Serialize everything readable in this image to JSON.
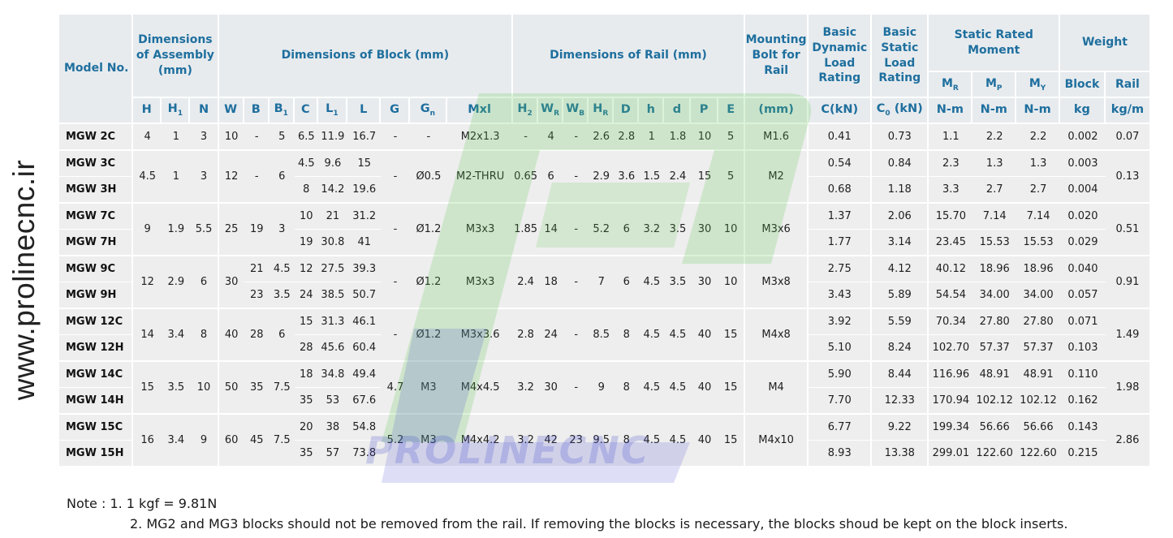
{
  "side_text": "www.prolinecnc.ir",
  "watermark_text": "PROLINECNC",
  "header": {
    "model": "Model No.",
    "assembly": "Dimensions of Assembly (mm)",
    "block": "Dimensions of Block (mm)",
    "rail": "Dimensions of Rail (mm)",
    "bolt": "Mounting Bolt for Rail",
    "dynamic": "Basic Dynamic Load Rating",
    "static": "Basic Static Load Rating",
    "moment": "Static Rated Moment",
    "weight": "Weight",
    "moment_cols": [
      {
        "base": "M",
        "sub": "R"
      },
      {
        "base": "M",
        "sub": "P"
      },
      {
        "base": "M",
        "sub": "Y"
      }
    ],
    "weight_cols": [
      "Block",
      "Rail"
    ],
    "sub_cols": [
      {
        "base": "H",
        "sub": ""
      },
      {
        "base": "H",
        "sub": "1"
      },
      {
        "base": "N",
        "sub": ""
      },
      {
        "base": "W",
        "sub": ""
      },
      {
        "base": "B",
        "sub": ""
      },
      {
        "base": "B",
        "sub": "1"
      },
      {
        "base": "C",
        "sub": ""
      },
      {
        "base": "L",
        "sub": "1"
      },
      {
        "base": "L",
        "sub": ""
      },
      {
        "base": "G",
        "sub": ""
      },
      {
        "base": "G",
        "sub": "n"
      },
      {
        "base": "Mxl",
        "sub": ""
      },
      {
        "base": "H",
        "sub": "2"
      },
      {
        "base": "W",
        "sub": "R"
      },
      {
        "base": "W",
        "sub": "B"
      },
      {
        "base": "H",
        "sub": "R"
      },
      {
        "base": "D",
        "sub": ""
      },
      {
        "base": "h",
        "sub": ""
      },
      {
        "base": "d",
        "sub": ""
      },
      {
        "base": "P",
        "sub": ""
      },
      {
        "base": "E",
        "sub": ""
      },
      {
        "base": "(mm)",
        "sub": ""
      },
      {
        "base": "C(kN)",
        "sub": ""
      },
      {
        "base": "C",
        "sub": "0",
        "tail": " (kN)"
      },
      {
        "base": "N-m",
        "sub": ""
      },
      {
        "base": "N-m",
        "sub": ""
      },
      {
        "base": "N-m",
        "sub": ""
      },
      {
        "base": "kg",
        "sub": ""
      },
      {
        "base": "kg/m",
        "sub": ""
      }
    ]
  },
  "groups": [
    {
      "rows": [
        {
          "model": "MGW 2C",
          "C": "6.5",
          "L1": "11.9",
          "L": "16.7",
          "dyn": "0.41",
          "stat": "0.73",
          "MR": "1.1",
          "MP": "2.2",
          "MY": "2.2",
          "block_kg": "0.002"
        }
      ],
      "H": "4",
      "H1": "1",
      "N": "3",
      "W": "10",
      "G": "-",
      "Gn": "-",
      "Mxl": "M2x1.3",
      "H2": "-",
      "WR": "4",
      "WB": "-",
      "HR": "2.6",
      "D": "2.8",
      "h": "1",
      "d": "1.8",
      "P": "10",
      "E": "5",
      "bolt": "M1.6",
      "rail_kg": "0.07",
      "B_merged": true,
      "B": "-",
      "B1": "5"
    },
    {
      "rows": [
        {
          "model": "MGW 3C",
          "C": "4.5",
          "L1": "9.6",
          "L": "15",
          "dyn": "0.54",
          "stat": "0.84",
          "MR": "2.3",
          "MP": "1.3",
          "MY": "1.3",
          "block_kg": "0.003"
        },
        {
          "model": "MGW 3H",
          "C": "8",
          "L1": "14.2",
          "L": "19.6",
          "dyn": "0.68",
          "stat": "1.18",
          "MR": "3.3",
          "MP": "2.7",
          "MY": "2.7",
          "block_kg": "0.004"
        }
      ],
      "H": "4.5",
      "H1": "1",
      "N": "3",
      "W": "12",
      "G": "-",
      "Gn": "Ø0.5",
      "Mxl": "M2-THRU",
      "H2": "0.65",
      "WR": "6",
      "WB": "-",
      "HR": "2.9",
      "D": "3.6",
      "h": "1.5",
      "d": "2.4",
      "P": "15",
      "E": "5",
      "bolt": "M2",
      "rail_kg": "0.13",
      "B_merged": true,
      "B": "-",
      "B1": "6"
    },
    {
      "rows": [
        {
          "model": "MGW 7C",
          "C": "10",
          "L1": "21",
          "L": "31.2",
          "dyn": "1.37",
          "stat": "2.06",
          "MR": "15.70",
          "MP": "7.14",
          "MY": "7.14",
          "block_kg": "0.020"
        },
        {
          "model": "MGW 7H",
          "C": "19",
          "L1": "30.8",
          "L": "41",
          "dyn": "1.77",
          "stat": "3.14",
          "MR": "23.45",
          "MP": "15.53",
          "MY": "15.53",
          "block_kg": "0.029"
        }
      ],
      "H": "9",
      "H1": "1.9",
      "N": "5.5",
      "W": "25",
      "G": "-",
      "Gn": "Ø1.2",
      "Mxl": "M3x3",
      "H2": "1.85",
      "WR": "14",
      "WB": "-",
      "HR": "5.2",
      "D": "6",
      "h": "3.2",
      "d": "3.5",
      "P": "30",
      "E": "10",
      "bolt": "M3x6",
      "rail_kg": "0.51",
      "B_merged": true,
      "B": "19",
      "B1": "3"
    },
    {
      "rows": [
        {
          "model": "MGW 9C",
          "B": "21",
          "B1": "4.5",
          "C": "12",
          "L1": "27.5",
          "L": "39.3",
          "dyn": "2.75",
          "stat": "4.12",
          "MR": "40.12",
          "MP": "18.96",
          "MY": "18.96",
          "block_kg": "0.040"
        },
        {
          "model": "MGW 9H",
          "B": "23",
          "B1": "3.5",
          "C": "24",
          "L1": "38.5",
          "L": "50.7",
          "dyn": "3.43",
          "stat": "5.89",
          "MR": "54.54",
          "MP": "34.00",
          "MY": "34.00",
          "block_kg": "0.057"
        }
      ],
      "H": "12",
      "H1": "2.9",
      "N": "6",
      "W": "30",
      "G": "-",
      "Gn": "Ø1.2",
      "Mxl": "M3x3",
      "H2": "2.4",
      "WR": "18",
      "WB": "-",
      "HR": "7",
      "D": "6",
      "h": "4.5",
      "d": "3.5",
      "P": "30",
      "E": "10",
      "bolt": "M3x8",
      "rail_kg": "0.91",
      "B_merged": false
    },
    {
      "rows": [
        {
          "model": "MGW 12C",
          "C": "15",
          "L1": "31.3",
          "L": "46.1",
          "dyn": "3.92",
          "stat": "5.59",
          "MR": "70.34",
          "MP": "27.80",
          "MY": "27.80",
          "block_kg": "0.071"
        },
        {
          "model": "MGW 12H",
          "C": "28",
          "L1": "45.6",
          "L": "60.4",
          "dyn": "5.10",
          "stat": "8.24",
          "MR": "102.70",
          "MP": "57.37",
          "MY": "57.37",
          "block_kg": "0.103"
        }
      ],
      "H": "14",
      "H1": "3.4",
      "N": "8",
      "W": "40",
      "G": "-",
      "Gn": "Ø1.2",
      "Mxl": "M3x3.6",
      "H2": "2.8",
      "WR": "24",
      "WB": "-",
      "HR": "8.5",
      "D": "8",
      "h": "4.5",
      "d": "4.5",
      "P": "40",
      "E": "15",
      "bolt": "M4x8",
      "rail_kg": "1.49",
      "B_merged": true,
      "B": "28",
      "B1": "6"
    },
    {
      "rows": [
        {
          "model": "MGW 14C",
          "C": "18",
          "L1": "34.8",
          "L": "49.4",
          "dyn": "5.90",
          "stat": "8.44",
          "MR": "116.96",
          "MP": "48.91",
          "MY": "48.91",
          "block_kg": "0.110"
        },
        {
          "model": "MGW 14H",
          "C": "35",
          "L1": "53",
          "L": "67.6",
          "dyn": "7.70",
          "stat": "12.33",
          "MR": "170.94",
          "MP": "102.12",
          "MY": "102.12",
          "block_kg": "0.162"
        }
      ],
      "H": "15",
      "H1": "3.5",
      "N": "10",
      "W": "50",
      "G": "4.7",
      "Gn": "M3",
      "Mxl": "M4x4.5",
      "H2": "3.2",
      "WR": "30",
      "WB": "-",
      "HR": "9",
      "D": "8",
      "h": "4.5",
      "d": "4.5",
      "P": "40",
      "E": "15",
      "bolt": "M4",
      "rail_kg": "1.98",
      "B_merged": true,
      "B": "35",
      "B1": "7.5"
    },
    {
      "rows": [
        {
          "model": "MGW 15C",
          "C": "20",
          "L1": "38",
          "L": "54.8",
          "dyn": "6.77",
          "stat": "9.22",
          "MR": "199.34",
          "MP": "56.66",
          "MY": "56.66",
          "block_kg": "0.143"
        },
        {
          "model": "MGW 15H",
          "C": "35",
          "L1": "57",
          "L": "73.8",
          "dyn": "8.93",
          "stat": "13.38",
          "MR": "299.01",
          "MP": "122.60",
          "MY": "122.60",
          "block_kg": "0.215"
        }
      ],
      "H": "16",
      "H1": "3.4",
      "N": "9",
      "W": "60",
      "G": "5.2",
      "Gn": "M3",
      "Mxl": "M4x4.2",
      "H2": "3.2",
      "WR": "42",
      "WB": "23",
      "HR": "9.5",
      "D": "8",
      "h": "4.5",
      "d": "4.5",
      "P": "40",
      "E": "15",
      "bolt": "M4x10",
      "rail_kg": "2.86",
      "B_merged": true,
      "B": "45",
      "B1": "7.5"
    }
  ],
  "notes": {
    "line1": "Note : 1. 1 kgf = 9.81N",
    "line2": "2. MG2 and MG3 blocks should not be removed from the rail. If removing the blocks is necessary, the blocks shoud be kept on the block inserts."
  }
}
